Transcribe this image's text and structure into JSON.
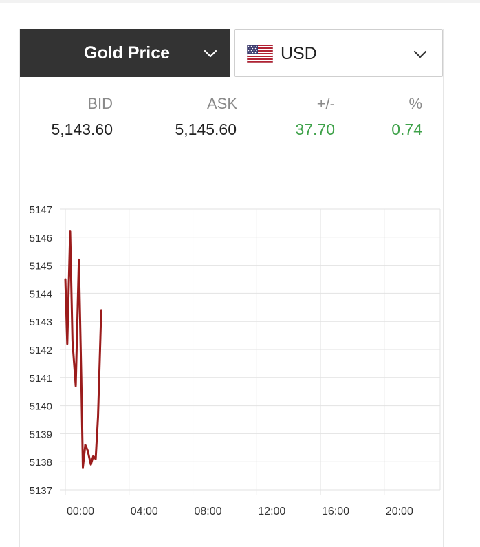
{
  "metal_selector": {
    "label": "Gold Price",
    "icon": "chevron-down-icon"
  },
  "currency_selector": {
    "label": "USD",
    "flag": "us-flag-icon",
    "icon": "chevron-down-icon"
  },
  "quote": {
    "headers": {
      "bid": "BID",
      "ask": "ASK",
      "change": "+/-",
      "percent": "%"
    },
    "values": {
      "bid": "5,143.60",
      "ask": "5,145.60",
      "change": "37.70",
      "percent": "0.74"
    },
    "change_color": "#3fa24a"
  },
  "chart_data": {
    "type": "line",
    "title": "",
    "xlabel": "",
    "ylabel": "",
    "x_tick_labels": [
      "00:00",
      "04:00",
      "08:00",
      "12:00",
      "16:00",
      "20:00"
    ],
    "x_tick_hours": [
      0,
      4,
      8,
      12,
      16,
      20
    ],
    "xlim_hours": [
      0,
      23.5
    ],
    "y_ticks": [
      5137,
      5138,
      5139,
      5140,
      5141,
      5142,
      5143,
      5144,
      5145,
      5146,
      5147
    ],
    "ylim": [
      5137,
      5147
    ],
    "grid": true,
    "line_color": "#9b1c1c",
    "series": [
      {
        "x_hours": [
          0,
          0.12,
          0.3,
          0.45,
          0.65,
          0.85,
          1.0,
          1.1,
          1.25,
          1.4,
          1.6,
          1.75,
          1.9,
          2.05,
          2.25
        ],
        "values": [
          5144.5,
          5142.2,
          5146.2,
          5142.3,
          5140.7,
          5145.2,
          5141.0,
          5137.8,
          5138.6,
          5138.4,
          5137.9,
          5138.2,
          5138.1,
          5139.6,
          5143.4
        ]
      }
    ]
  }
}
